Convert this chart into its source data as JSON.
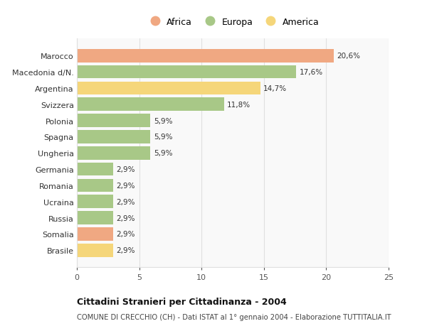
{
  "categories": [
    "Brasile",
    "Somalia",
    "Russia",
    "Ucraina",
    "Romania",
    "Germania",
    "Ungheria",
    "Spagna",
    "Polonia",
    "Svizzera",
    "Argentina",
    "Macedonia d/N.",
    "Marocco"
  ],
  "values": [
    2.9,
    2.9,
    2.9,
    2.9,
    2.9,
    2.9,
    5.9,
    5.9,
    5.9,
    11.8,
    14.7,
    17.6,
    20.6
  ],
  "labels": [
    "2,9%",
    "2,9%",
    "2,9%",
    "2,9%",
    "2,9%",
    "2,9%",
    "5,9%",
    "5,9%",
    "5,9%",
    "11,8%",
    "14,7%",
    "17,6%",
    "20,6%"
  ],
  "colors": [
    "#f5d67a",
    "#f0a882",
    "#a8c887",
    "#a8c887",
    "#a8c887",
    "#a8c887",
    "#a8c887",
    "#a8c887",
    "#a8c887",
    "#a8c887",
    "#f5d67a",
    "#a8c887",
    "#f0a882"
  ],
  "legend": [
    {
      "label": "Africa",
      "color": "#f0a882"
    },
    {
      "label": "Europa",
      "color": "#a8c887"
    },
    {
      "label": "America",
      "color": "#f5d67a"
    }
  ],
  "title": "Cittadini Stranieri per Cittadinanza - 2004",
  "subtitle": "COMUNE DI CRECCHIO (CH) - Dati ISTAT al 1° gennaio 2004 - Elaborazione TUTTITALIA.IT",
  "xlim": [
    0,
    25
  ],
  "xticks": [
    0,
    5,
    10,
    15,
    20,
    25
  ],
  "background_color": "#ffffff",
  "bar_background": "#f9f9f9",
  "grid_color": "#e0e0e0"
}
